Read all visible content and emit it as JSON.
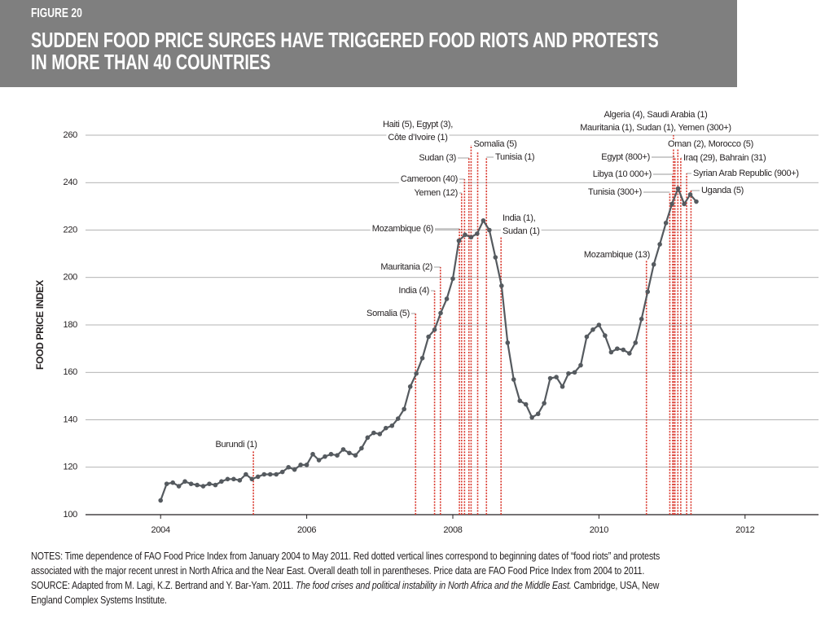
{
  "chart_data": {
    "type": "line",
    "figure_label": "FIGURE 20",
    "title": [
      "SUDDEN FOOD PRICE SURGES HAVE TRIGGERED FOOD RIOTS AND PROTESTS",
      "IN MORE THAN 40 COUNTRIES"
    ],
    "y_label": "FOOD PRICE INDEX",
    "x": [
      2004,
      2004.083,
      2004.167,
      2004.25,
      2004.333,
      2004.417,
      2004.5,
      2004.583,
      2004.667,
      2004.75,
      2004.833,
      2004.917,
      2005,
      2005.083,
      2005.167,
      2005.25,
      2005.333,
      2005.417,
      2005.5,
      2005.583,
      2005.667,
      2005.75,
      2005.833,
      2005.917,
      2006,
      2006.083,
      2006.167,
      2006.25,
      2006.333,
      2006.417,
      2006.5,
      2006.583,
      2006.667,
      2006.75,
      2006.833,
      2006.917,
      2007,
      2007.083,
      2007.167,
      2007.25,
      2007.333,
      2007.417,
      2007.5,
      2007.583,
      2007.667,
      2007.75,
      2007.833,
      2007.917,
      2008,
      2008.083,
      2008.167,
      2008.25,
      2008.333,
      2008.417,
      2008.5,
      2008.583,
      2008.667,
      2008.75,
      2008.833,
      2008.917,
      2009,
      2009.083,
      2009.167,
      2009.25,
      2009.333,
      2009.417,
      2009.5,
      2009.583,
      2009.667,
      2009.75,
      2009.833,
      2009.917,
      2010,
      2010.083,
      2010.167,
      2010.25,
      2010.333,
      2010.417,
      2010.5,
      2010.583,
      2010.667,
      2010.75,
      2010.833,
      2010.917,
      2011,
      2011.083,
      2011.167,
      2011.25,
      2011.333
    ],
    "series": [
      {
        "name": "FAO Food Price Index",
        "color": "#555a5f",
        "values": [
          106,
          113,
          113.5,
          112,
          114,
          113,
          112.5,
          112,
          113,
          112.5,
          114,
          115,
          115,
          114.5,
          117,
          115,
          116,
          117,
          117,
          117,
          118,
          120,
          119,
          121,
          121,
          125.5,
          123,
          124.5,
          125.5,
          125,
          127.5,
          126,
          125,
          128,
          132.5,
          134.5,
          134,
          136.5,
          137.5,
          140.5,
          144.5,
          154,
          159.5,
          166,
          175,
          178,
          185,
          191,
          199.5,
          215.5,
          218,
          217,
          218.5,
          224,
          220,
          208.5,
          196.5,
          172.5,
          157,
          148,
          146.5,
          141,
          142.5,
          147,
          157.5,
          158,
          154,
          159.5,
          160,
          163,
          175,
          178,
          180,
          175.5,
          168.5,
          170,
          169.5,
          168,
          172.5,
          182.5,
          194,
          205.5,
          214,
          223,
          231,
          237.5,
          231,
          235,
          232
        ]
      }
    ],
    "annotation_color": "#d9372c",
    "annotations": [
      {
        "x": 2005.27,
        "text": [
          "Burundi (1)"
        ]
      },
      {
        "x": 2007.49,
        "text": [
          "Somalia (5)"
        ]
      },
      {
        "x": 2007.75,
        "text": [
          "India (4)"
        ]
      },
      {
        "x": 2007.83,
        "text": [
          "Mauritania (2)"
        ]
      },
      {
        "x": 2008.09,
        "text": [
          "Mozambique (6)"
        ]
      },
      {
        "x": 2008.12,
        "text": [
          "Yemen (12)"
        ]
      },
      {
        "x": 2008.16,
        "text": [
          "Cameroon (40)"
        ]
      },
      {
        "x": 2008.22,
        "text": [
          "Sudan (3)"
        ]
      },
      {
        "x": 2008.25,
        "text": [
          "Haiti (5), Egypt (3),",
          "Côte d’Ivoire (1)"
        ]
      },
      {
        "x": 2008.34,
        "text": [
          "Somalia (5)"
        ]
      },
      {
        "x": 2008.46,
        "text": [
          "Tunisia (1)"
        ]
      },
      {
        "x": 2008.66,
        "text": [
          "India (1),",
          "Sudan (1)"
        ]
      },
      {
        "x": 2010.65,
        "text": [
          "Mozambique (13)"
        ]
      },
      {
        "x": 2010.97,
        "text": [
          "Tunisia (300+)"
        ]
      },
      {
        "x": 2011.01,
        "text": [
          "Libya (10 000+)"
        ]
      },
      {
        "x": 2011.04,
        "text": [
          "Egypt (800+)"
        ]
      },
      {
        "x": 2011.02,
        "text": [
          "Algeria (4), Saudi Arabia (1)",
          "Mauritania (1), Sudan (1), Yemen (300+)"
        ]
      },
      {
        "x": 2011.08,
        "text": [
          "Oman (2), Morocco (5)"
        ]
      },
      {
        "x": 2011.12,
        "text": [
          "Iraq (29), Bahrain (31)"
        ]
      },
      {
        "x": 2011.2,
        "text": [
          "Syrian Arab Republic (900+)"
        ]
      },
      {
        "x": 2011.26,
        "text": [
          "Uganda (5)"
        ]
      }
    ],
    "xlim": [
      2003,
      2013
    ],
    "xticks": [
      2004,
      2006,
      2008,
      2010,
      2012
    ],
    "ylim": [
      100,
      260
    ],
    "yticks": [
      100,
      120,
      140,
      160,
      180,
      200,
      220,
      240,
      260
    ],
    "grid": true,
    "notes": "NOTES: Time dependence of FAO Food Price Index from January 2004 to May 2011. Red dotted vertical lines correspond to beginning dates of “food riots” and protests associated with the major recent unrest in North Africa and the Near East. Overall death toll in parentheses. Price data are FAO Food Price Index from 2004 to 2011.",
    "source": [
      "SOURCE: Adapted from M. Lagi, K.Z. Bertrand and Y. Bar-Yam. 2011. ",
      "The food crises and political instability in North Africa and the Middle East.",
      " Cambridge, USA, New England Complex Systems Institute."
    ]
  }
}
